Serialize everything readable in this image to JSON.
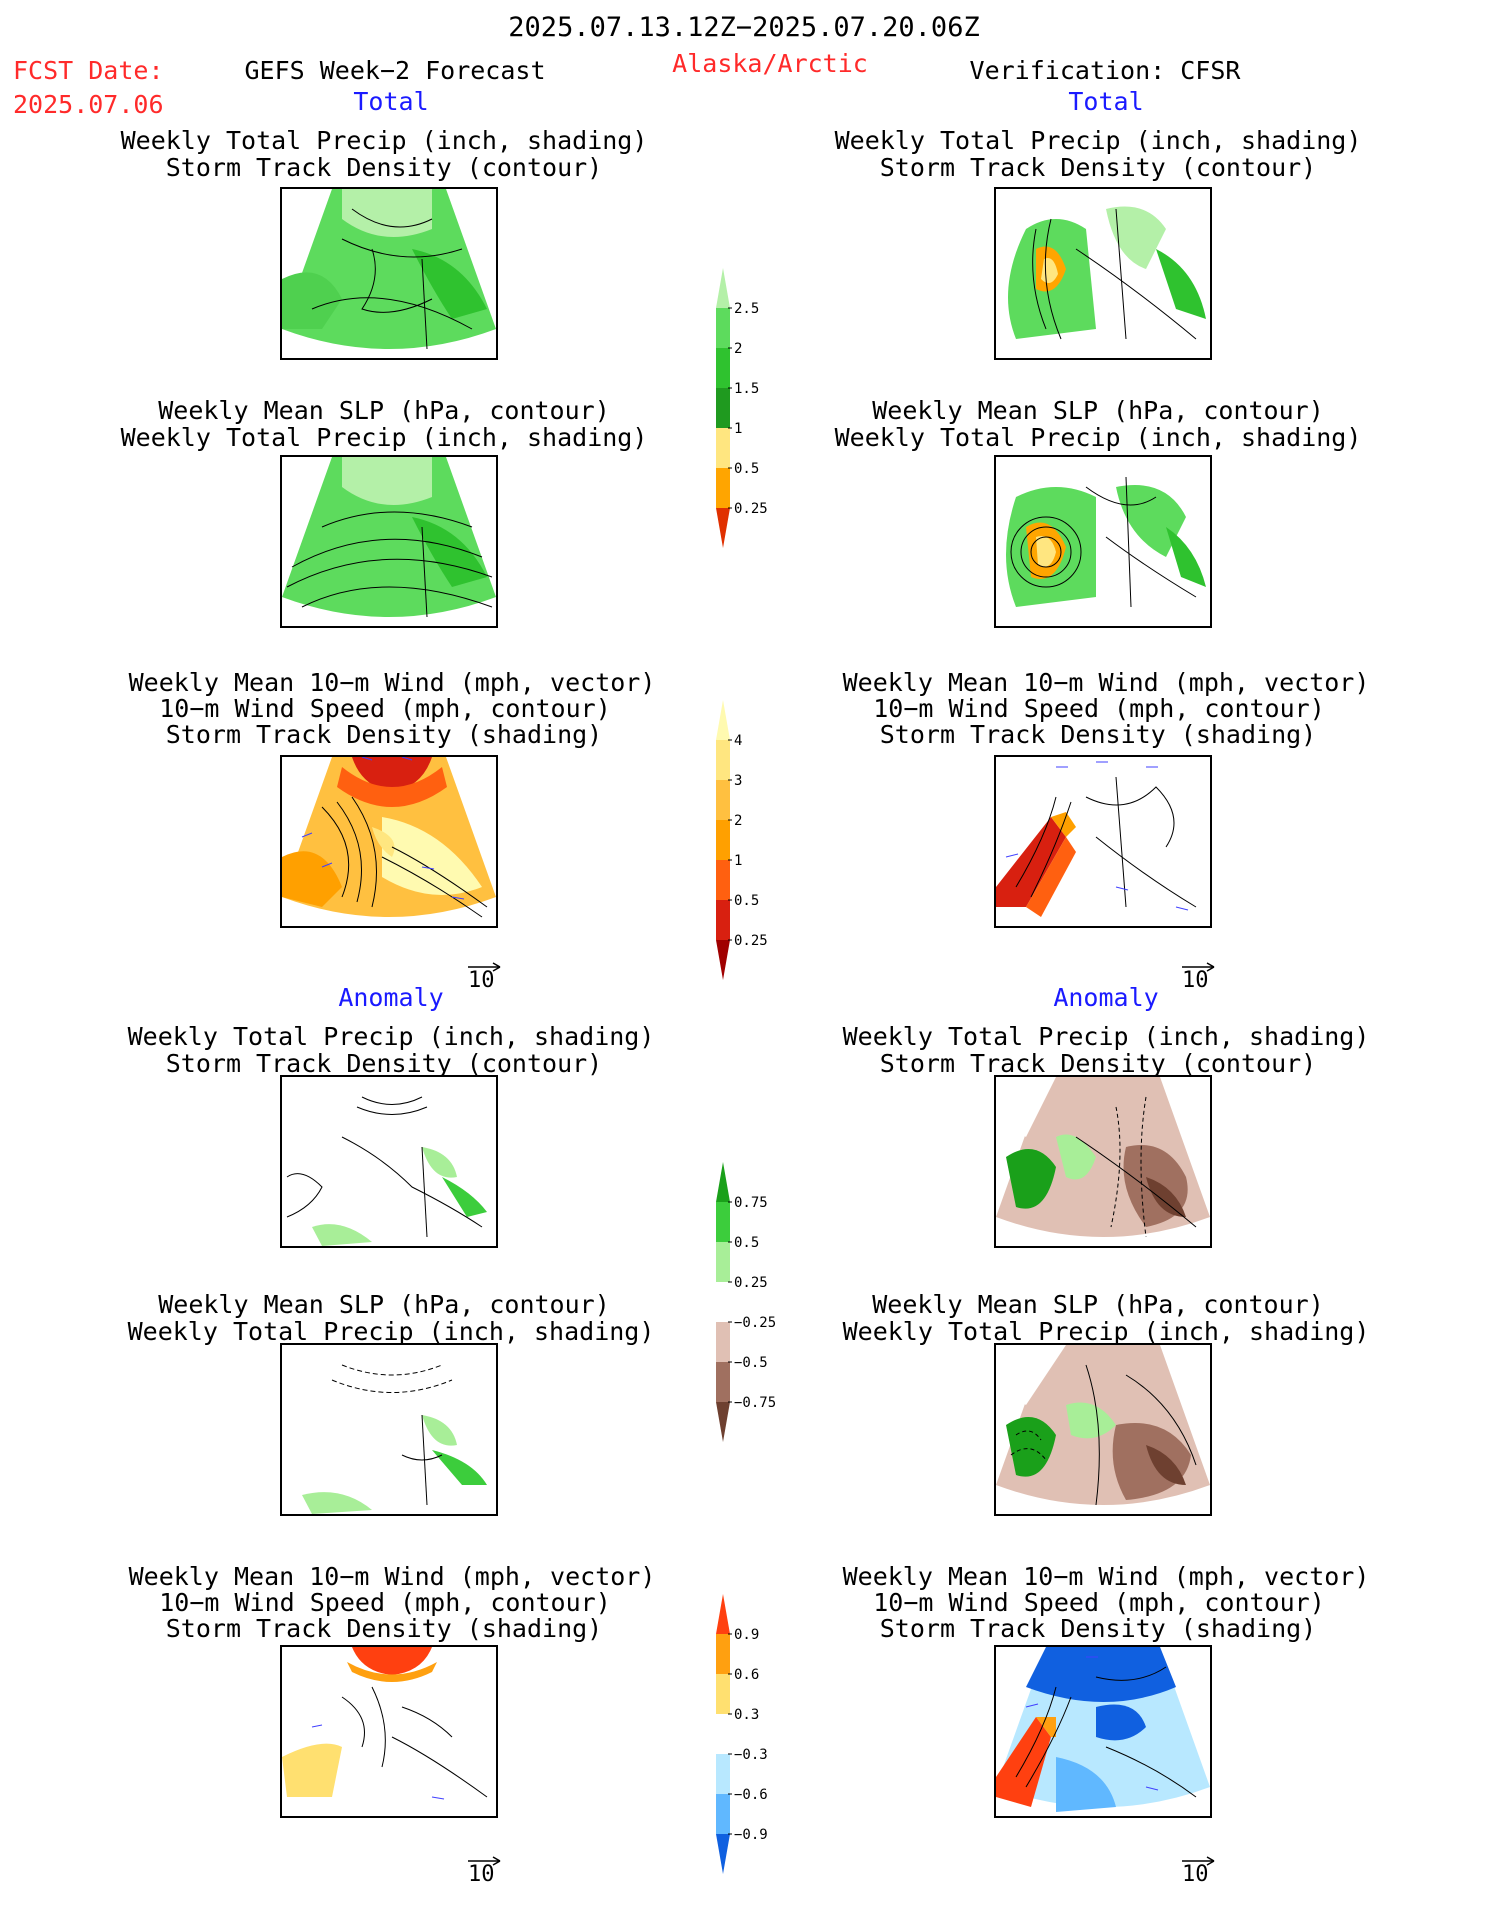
{
  "header": {
    "period": "2025.07.13.12Z−2025.07.20.06Z",
    "fcst_label": "FCST Date:",
    "fcst_date": "2025.07.06",
    "model": "GEFS Week−2 Forecast",
    "region": "Alaska/Arctic",
    "verification": "Verification: CFSR"
  },
  "sections": {
    "total_left": "Total",
    "total_right": "Total",
    "anomaly_left": "Anomaly",
    "anomaly_right": "Anomaly"
  },
  "titles": {
    "precip_track_1": "Weekly Total Precip (inch, shading)",
    "precip_track_2": "Storm Track Density (contour)",
    "slp_precip_1": "Weekly Mean SLP (hPa, contour)",
    "slp_precip_2": "Weekly Total Precip (inch, shading)",
    "wind_1": "Weekly Mean 10−m Wind (mph, vector)",
    "wind_2": "10−m Wind Speed (mph, contour)",
    "wind_3": "Storm Track Density (shading)"
  },
  "vector_ref": "10",
  "colorbars": {
    "precip_total": {
      "labels": [
        "0.25",
        "0.5",
        "1",
        "1.5",
        "2",
        "2.5"
      ],
      "colors": [
        "#b4f0a8",
        "#5ddb5d",
        "#2fc22f",
        "#1f9a1f",
        "#ffe680",
        "#ffa500",
        "#e03000"
      ]
    },
    "track_total": {
      "labels": [
        "0.25",
        "0.5",
        "1",
        "2",
        "3",
        "4"
      ],
      "colors": [
        "#fffab0",
        "#ffe680",
        "#ffc040",
        "#ffa000",
        "#ff6010",
        "#d82010",
        "#a00000"
      ]
    },
    "precip_anom": {
      "labels": [
        "0.75",
        "0.5",
        "0.25",
        "−0.25",
        "−0.5",
        "−0.75"
      ],
      "colors": [
        "#1aa01a",
        "#3ccd3c",
        "#a8ee98",
        "#ffffff",
        "#e0c0b4",
        "#a07060",
        "#6e4030"
      ]
    },
    "track_anom": {
      "labels": [
        "0.9",
        "0.6",
        "0.3",
        "−0.3",
        "−0.6",
        "−0.9"
      ],
      "colors": [
        "#ff4010",
        "#ffa010",
        "#ffe070",
        "#ffffff",
        "#b8e8ff",
        "#60b8ff",
        "#1060e0"
      ]
    }
  }
}
